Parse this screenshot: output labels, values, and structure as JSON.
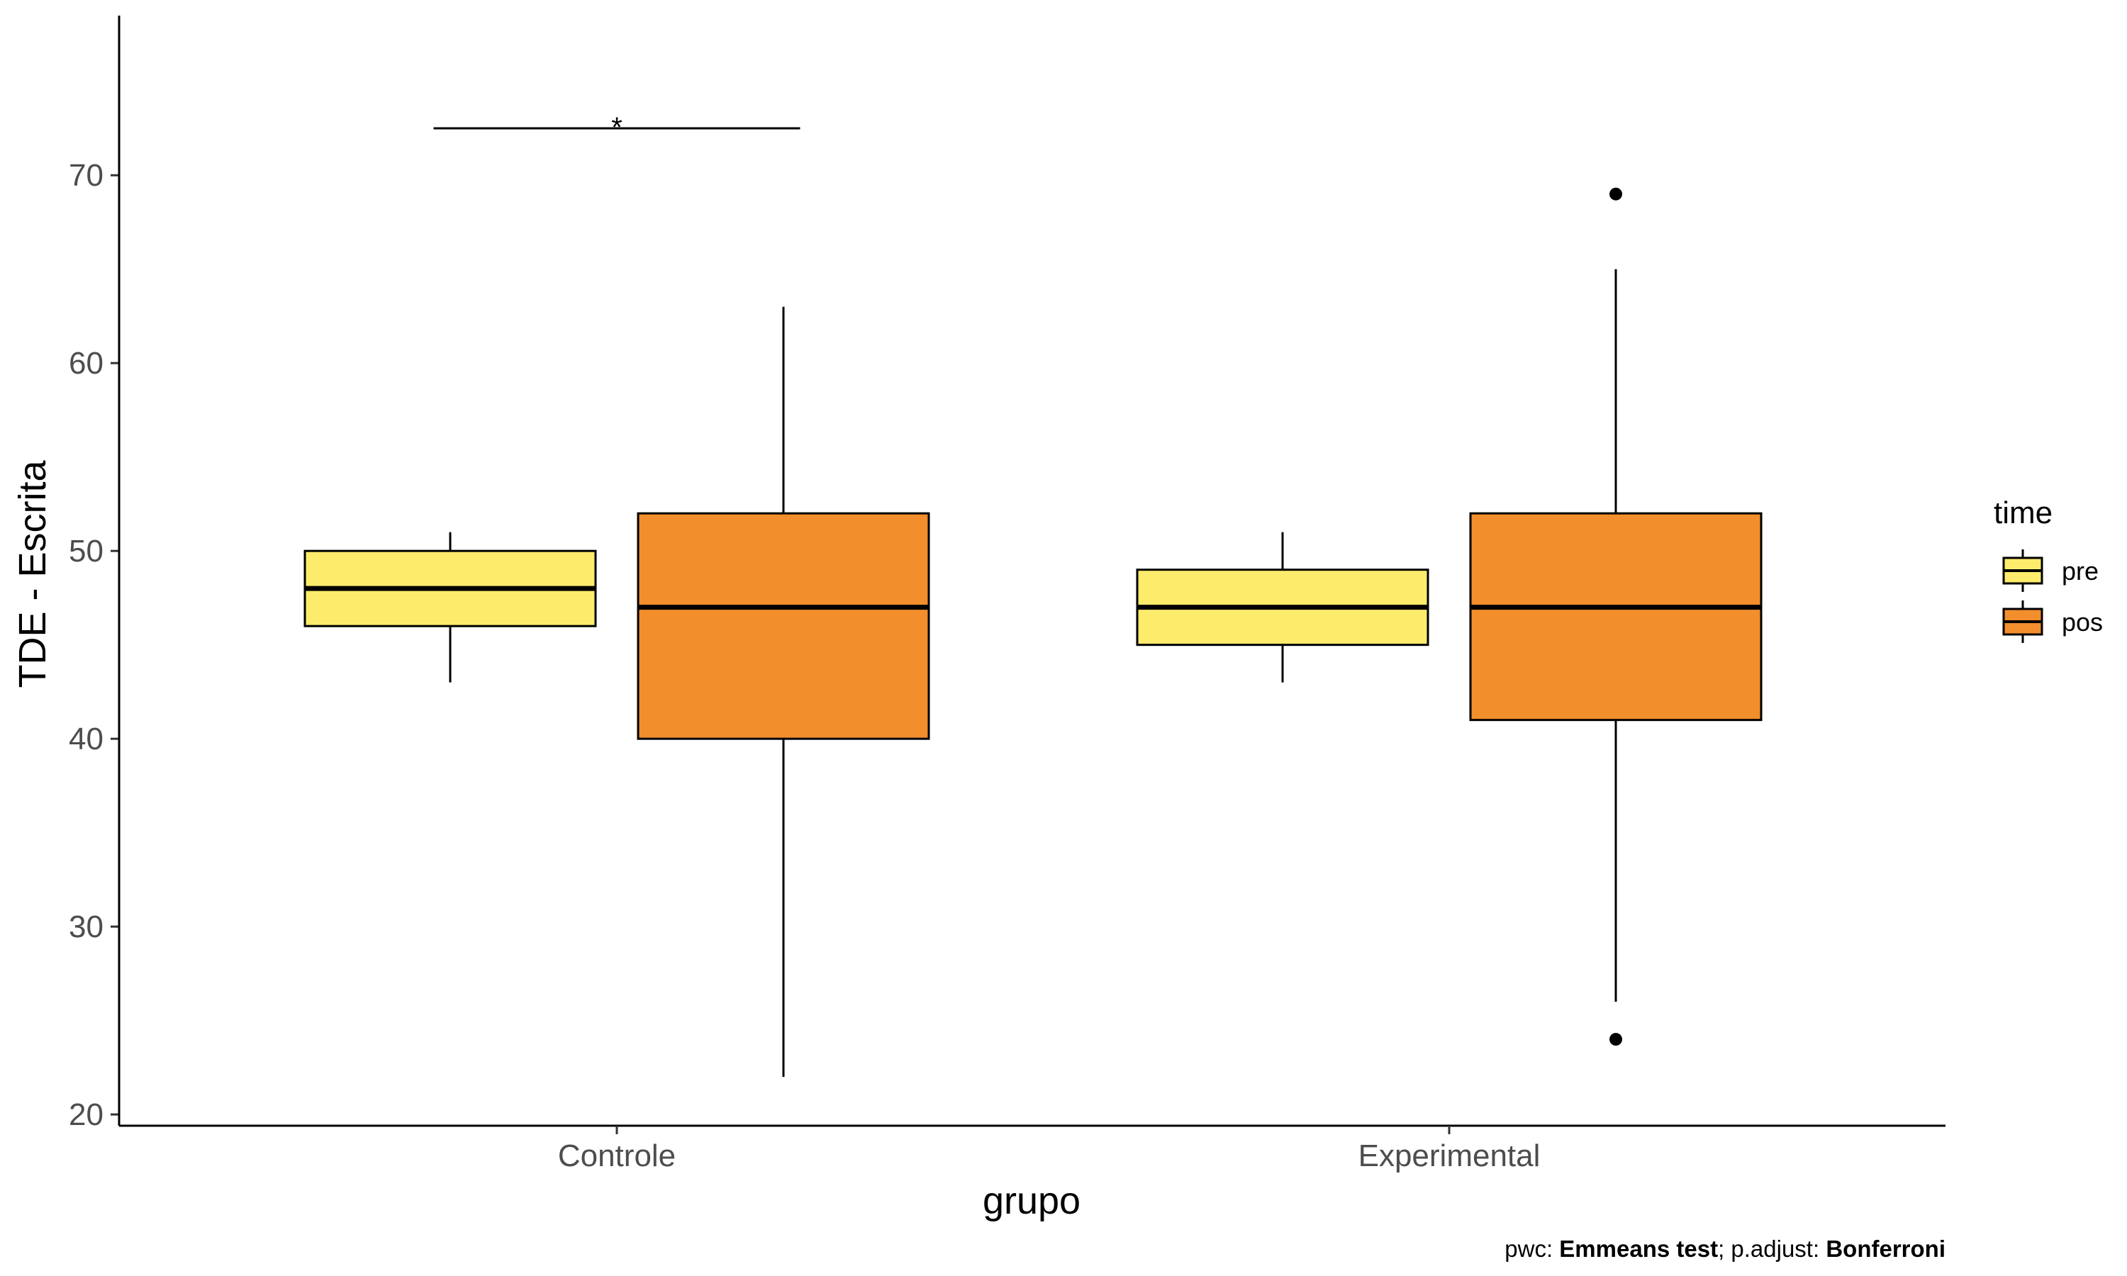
{
  "chart_data": {
    "type": "boxplot",
    "xlabel": "grupo",
    "ylabel": "TDE - Escrita",
    "ylim": [
      19.4,
      78.5
    ],
    "yticks": [
      20,
      30,
      40,
      50,
      60,
      70
    ],
    "categories": [
      "Controle",
      "Experimental"
    ],
    "legend": {
      "title": "time",
      "position": "right",
      "entries": [
        {
          "name": "pre",
          "color": "#FDEC6C"
        },
        {
          "name": "pos",
          "color": "#F28E2C"
        }
      ]
    },
    "series": [
      {
        "name": "pre",
        "color": "#FDEC6C",
        "boxes": [
          {
            "category": "Controle",
            "whisker_low": 43,
            "q1": 46,
            "median": 48,
            "q3": 50,
            "whisker_high": 51,
            "outliers": []
          },
          {
            "category": "Experimental",
            "whisker_low": 43,
            "q1": 45,
            "median": 47,
            "q3": 49,
            "whisker_high": 51,
            "outliers": []
          }
        ]
      },
      {
        "name": "pos",
        "color": "#F28E2C",
        "boxes": [
          {
            "category": "Controle",
            "whisker_low": 22,
            "q1": 40,
            "median": 47,
            "q3": 52,
            "whisker_high": 63,
            "outliers": []
          },
          {
            "category": "Experimental",
            "whisker_low": 26,
            "q1": 41,
            "median": 47,
            "q3": 52,
            "whisker_high": 65,
            "outliers": [
              24,
              69
            ]
          }
        ]
      }
    ],
    "annotations": [
      {
        "category": "Controle",
        "y": 72.5,
        "label": "*"
      }
    ],
    "caption": {
      "prefix": "pwc: ",
      "test": "Emmeans test",
      "middle": "; p.adjust: ",
      "adjust": "Bonferroni"
    },
    "grid": false
  }
}
